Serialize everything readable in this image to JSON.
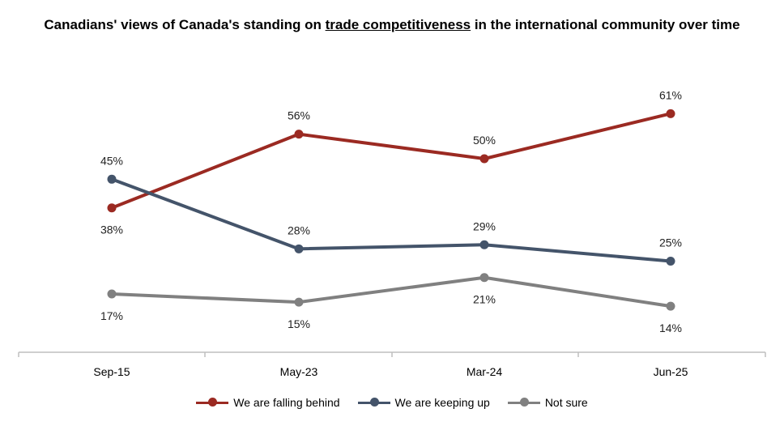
{
  "title": {
    "part1": "Canadians' views of Canada's standing on ",
    "underlined": "trade competitiveness",
    "part2": " in the international community over time"
  },
  "chart_data": {
    "type": "line",
    "categories": [
      "Sep-15",
      "May-23",
      "Mar-24",
      "Jun-25"
    ],
    "series": [
      {
        "name": "We are falling behind",
        "values": [
          38,
          56,
          50,
          61
        ],
        "color": "#9b2a22",
        "labels": [
          "38%",
          "56%",
          "50%",
          "61%"
        ]
      },
      {
        "name": "We are keeping up",
        "values": [
          45,
          28,
          29,
          25
        ],
        "color": "#44546a",
        "labels": [
          "45%",
          "28%",
          "29%",
          "25%"
        ]
      },
      {
        "name": "Not sure",
        "values": [
          17,
          15,
          21,
          14
        ],
        "color": "#808080",
        "labels": [
          "17%",
          "15%",
          "21%",
          "14%"
        ]
      }
    ],
    "grid": false,
    "legend_position": "bottom"
  }
}
